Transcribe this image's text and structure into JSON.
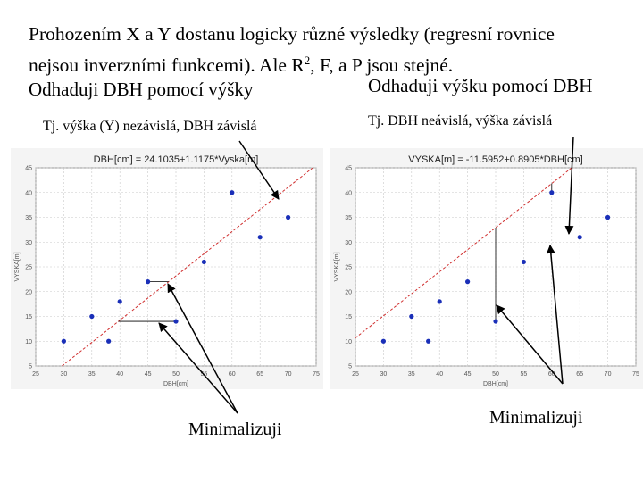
{
  "slide": {
    "intro_line1": "Prohozením X a Y dostanu logicky různé výsledky (regresní rovnice",
    "intro_line2a": "nejsou inverzními funkcemi). Ale R",
    "intro_sup": "2",
    "intro_line2b": ", F, a P jsou stejné.",
    "heading_left": "Odhaduji DBH pomocí výšky",
    "heading_right": "Odhaduji výšku pomocí DBH",
    "sub_left": "Tj. výška (Y) nezávislá, DBH závislá",
    "sub_right": "Tj. DBH neávislá, výška závislá",
    "minimize_left": "Minimalizuji",
    "minimize_right": "Minimalizuji"
  },
  "colors": {
    "point": "#1a2fb8",
    "line": "#d03030",
    "grid": "#c8c8c8",
    "panel": "#f4f4f4"
  },
  "chart_data": [
    {
      "type": "scatter",
      "title": "DBH[cm] = 24.1035+1.1175*Vyska[m]",
      "xlabel": "DBH[cm]",
      "ylabel": "VYSKA[m]",
      "xlim": [
        25,
        75
      ],
      "ylim": [
        5,
        45
      ],
      "x_ticks": [
        "25",
        "30",
        "35",
        "40",
        "45",
        "50",
        "55",
        "60",
        "65",
        "70",
        "75"
      ],
      "y_ticks": [
        "5",
        "10",
        "15",
        "20",
        "25",
        "30",
        "35",
        "40",
        "45"
      ],
      "grid": true,
      "x": [
        30,
        35,
        38,
        40,
        45,
        50,
        55,
        60,
        65,
        70
      ],
      "y": [
        10,
        15,
        10,
        18,
        22,
        14,
        26,
        40,
        31,
        35
      ],
      "fit": {
        "intercept": 24.1035,
        "slope": 1.1175,
        "predicts": "x"
      }
    },
    {
      "type": "scatter",
      "title": "VYSKA[m] = -11.5952+0.8905*DBH[cm]",
      "xlabel": "DBH[cm]",
      "ylabel": "VYSKA[m]",
      "xlim": [
        25,
        75
      ],
      "ylim": [
        5,
        45
      ],
      "x_ticks": [
        "25",
        "30",
        "35",
        "40",
        "45",
        "50",
        "55",
        "60",
        "65",
        "70",
        "75"
      ],
      "y_ticks": [
        "5",
        "10",
        "15",
        "20",
        "25",
        "30",
        "35",
        "40",
        "45"
      ],
      "grid": true,
      "x": [
        30,
        35,
        38,
        40,
        45,
        50,
        55,
        60,
        65,
        70
      ],
      "y": [
        10,
        15,
        10,
        18,
        22,
        14,
        26,
        40,
        31,
        35
      ],
      "fit": {
        "intercept": -11.5952,
        "slope": 0.8905,
        "predicts": "y"
      }
    }
  ]
}
